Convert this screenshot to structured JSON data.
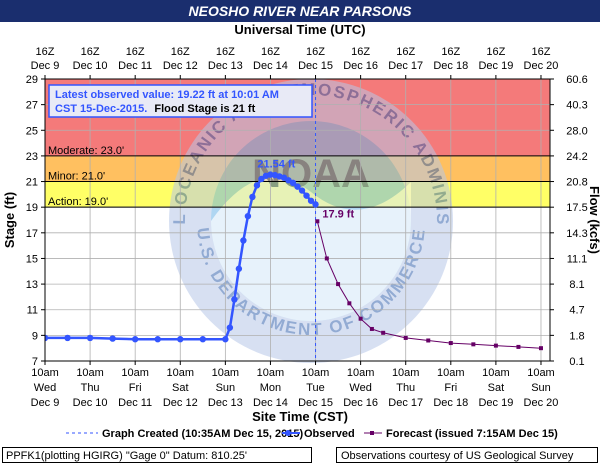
{
  "title": "NEOSHO RIVER NEAR PARSONS",
  "chart_data": {
    "type": "line",
    "top_axis_title": "Universal Time (UTC)",
    "bottom_axis_title": "Site Time (CST)",
    "ylabel": "Stage (ft)",
    "y2label": "Flow (kcfs)",
    "ylim": [
      7,
      29
    ],
    "xlim": [
      0,
      11.2
    ],
    "y_ticks": [
      7,
      9,
      11,
      13,
      15,
      17,
      19,
      21,
      23,
      25,
      27,
      29
    ],
    "flow_ticks": [
      "0.1",
      "1.8",
      "4.7",
      "8.1",
      "11.1",
      "14.3",
      "17.5",
      "20.8",
      "24.2",
      "28.0",
      "40.3",
      "60.6"
    ],
    "top_ticks": [
      {
        "l1": "16Z",
        "l2": "Dec 9"
      },
      {
        "l1": "16Z",
        "l2": "Dec 10"
      },
      {
        "l1": "16Z",
        "l2": "Dec 11"
      },
      {
        "l1": "16Z",
        "l2": "Dec 12"
      },
      {
        "l1": "16Z",
        "l2": "Dec 13"
      },
      {
        "l1": "16Z",
        "l2": "Dec 14"
      },
      {
        "l1": "16Z",
        "l2": "Dec 15"
      },
      {
        "l1": "16Z",
        "l2": "Dec 16"
      },
      {
        "l1": "16Z",
        "l2": "Dec 17"
      },
      {
        "l1": "16Z",
        "l2": "Dec 18"
      },
      {
        "l1": "16Z",
        "l2": "Dec 19"
      },
      {
        "l1": "16Z",
        "l2": "Dec 20"
      }
    ],
    "bottom_ticks": [
      {
        "l1": "10am",
        "l2": "Wed",
        "l3": "Dec 9"
      },
      {
        "l1": "10am",
        "l2": "Thu",
        "l3": "Dec 10"
      },
      {
        "l1": "10am",
        "l2": "Fri",
        "l3": "Dec 11"
      },
      {
        "l1": "10am",
        "l2": "Sat",
        "l3": "Dec 12"
      },
      {
        "l1": "10am",
        "l2": "Sun",
        "l3": "Dec 13"
      },
      {
        "l1": "10am",
        "l2": "Mon",
        "l3": "Dec 14"
      },
      {
        "l1": "10am",
        "l2": "Tue",
        "l3": "Dec 15"
      },
      {
        "l1": "10am",
        "l2": "Wed",
        "l3": "Dec 16"
      },
      {
        "l1": "10am",
        "l2": "Thu",
        "l3": "Dec 17"
      },
      {
        "l1": "10am",
        "l2": "Fri",
        "l3": "Dec 18"
      },
      {
        "l1": "10am",
        "l2": "Sat",
        "l3": "Dec 19"
      },
      {
        "l1": "10am",
        "l2": "Sun",
        "l3": "Dec 20"
      }
    ],
    "bands": [
      {
        "from": 23,
        "to": 29,
        "color": "#f47a7a"
      },
      {
        "from": 21,
        "to": 23,
        "color": "#ffc060"
      },
      {
        "from": 19,
        "to": 21,
        "color": "#ffff66"
      }
    ],
    "thresholds": [
      {
        "label": "Moderate: 23.0'",
        "value": 23.0
      },
      {
        "label": "Minor: 21.0'",
        "value": 21.0
      },
      {
        "label": "Action: 19.0'",
        "value": 19.0
      }
    ],
    "annotations": {
      "peak_label": "21.54 ft",
      "peak_x": 5.13,
      "peak_y": 21.54,
      "forecast_label": "17.9 ft",
      "forecast_x": 6.04,
      "forecast_y": 17.9,
      "graph_created_x": 6.0
    },
    "info_box": {
      "line1": "Latest observed value: 19.22 ft at 10:01 AM",
      "line2_blue": "CST 15-Dec-2015.",
      "line2_black": "Flood Stage is 21 ft"
    },
    "series": [
      {
        "name": "Observed",
        "color": "#3355ff",
        "x": [
          0.0,
          0.5,
          1.0,
          1.5,
          2.0,
          2.5,
          3.0,
          3.5,
          4.0,
          4.1,
          4.2,
          4.3,
          4.4,
          4.5,
          4.6,
          4.7,
          4.8,
          4.9,
          5.0,
          5.1,
          5.2,
          5.3,
          5.4,
          5.5,
          5.6,
          5.7,
          5.8,
          5.9,
          6.0
        ],
        "y": [
          8.8,
          8.8,
          8.8,
          8.75,
          8.7,
          8.7,
          8.7,
          8.7,
          8.7,
          9.6,
          11.8,
          14.2,
          16.4,
          18.3,
          19.8,
          20.7,
          21.2,
          21.45,
          21.54,
          21.5,
          21.4,
          21.3,
          21.1,
          20.9,
          20.6,
          20.3,
          19.9,
          19.5,
          19.22
        ]
      },
      {
        "name": "Forecast (issued 7:15AM Dec 15)",
        "color": "#660066",
        "x": [
          6.04,
          6.25,
          6.5,
          6.75,
          7.0,
          7.25,
          7.5,
          8.0,
          8.5,
          9.0,
          9.5,
          10.0,
          10.5,
          11.0
        ],
        "y": [
          17.9,
          15.0,
          13.0,
          11.5,
          10.3,
          9.5,
          9.2,
          8.8,
          8.6,
          8.4,
          8.3,
          8.2,
          8.1,
          8.0
        ]
      }
    ],
    "legend": {
      "graph_created": "Graph Created (10:35AM Dec 15, 2015)",
      "observed": "Observed",
      "forecast": "Forecast (issued 7:15AM Dec 15)"
    }
  },
  "watermark": {
    "arc_text": "NATIONAL OCEANIC AND ATMOSPHERIC ADMINISTRATION",
    "bottom_arc_text": "U.S. DEPARTMENT OF COMMERCE",
    "center_text": "NOAA"
  },
  "footer": {
    "left": "PPFK1(plotting HGIRG) \"Gage 0\" Datum: 810.25'",
    "right": "Observations courtesy of US Geological Survey"
  }
}
